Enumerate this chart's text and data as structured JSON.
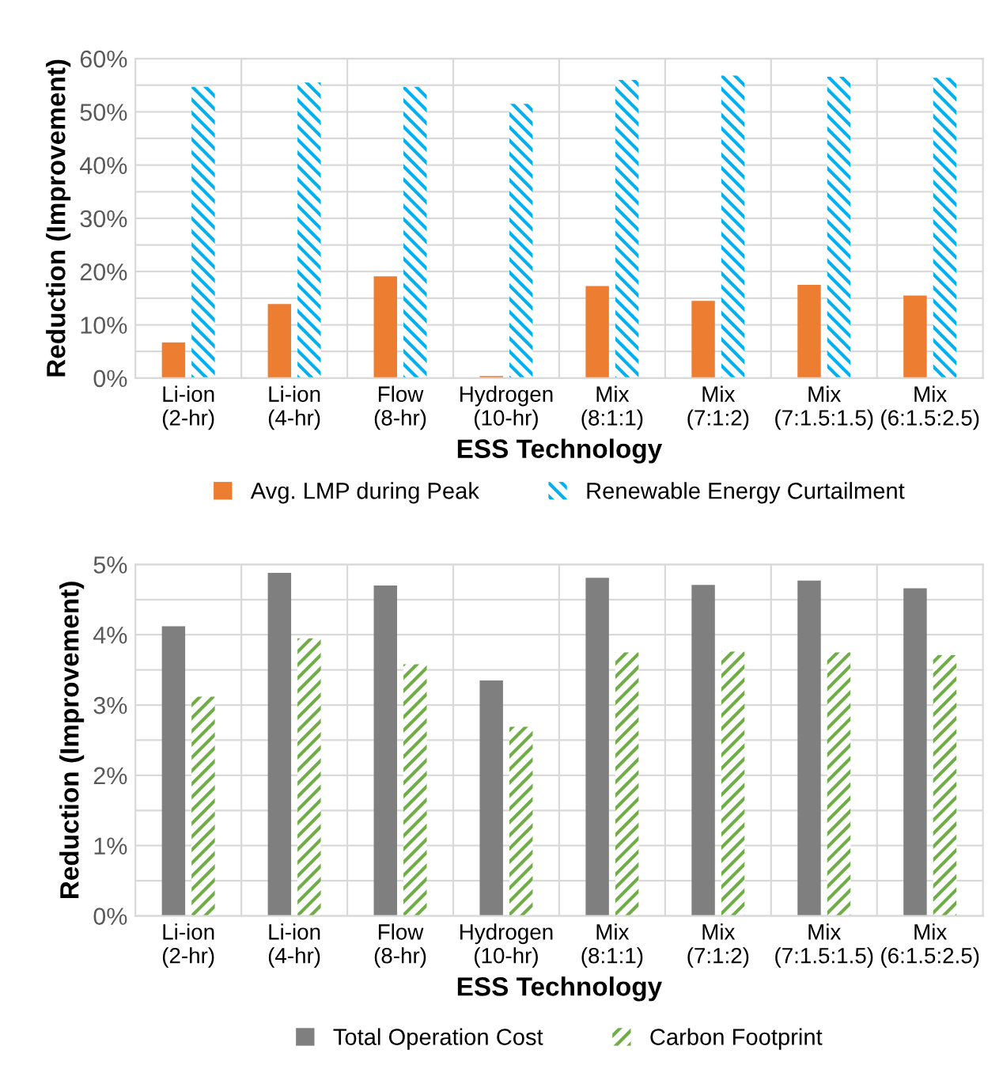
{
  "chart_data": [
    {
      "type": "bar",
      "xlabel": "ESS Technology",
      "ylabel": "Reduction (Improvement)",
      "categories": [
        "Li-ion\n(2-hr)",
        "Li-ion\n(4-hr)",
        "Flow\n(8-hr)",
        "Hydrogen\n(10-hr)",
        "Mix\n(8:1:1)",
        "Mix\n(7:1:2)",
        "Mix\n(7:1.5:1.5)",
        "Mix\n(6:1.5:2.5)"
      ],
      "series": [
        {
          "name": "Avg. LMP during Peak",
          "color": "#ed7d31",
          "values": [
            6.7,
            13.9,
            19.1,
            0.4,
            17.3,
            14.5,
            17.5,
            15.5
          ]
        },
        {
          "name": "Renewable Energy Curtailment",
          "color": "#00b0f0",
          "values": [
            54.7,
            55.5,
            54.7,
            51.5,
            56.0,
            56.8,
            56.6,
            56.4
          ]
        }
      ],
      "ylim": [
        0,
        60
      ],
      "yticks": [
        {
          "value": 0,
          "label": "0%"
        },
        {
          "value": 5,
          "label": null
        },
        {
          "value": 10,
          "label": "10%"
        },
        {
          "value": 15,
          "label": null
        },
        {
          "value": 20,
          "label": "20%"
        },
        {
          "value": 25,
          "label": null
        },
        {
          "value": 30,
          "label": "30%"
        },
        {
          "value": 35,
          "label": null
        },
        {
          "value": 40,
          "label": "40%"
        },
        {
          "value": 45,
          "label": null
        },
        {
          "value": 50,
          "label": "50%"
        },
        {
          "value": 55,
          "label": null
        },
        {
          "value": 60,
          "label": "60%"
        }
      ],
      "grid": true,
      "legend": "bottom"
    },
    {
      "type": "bar",
      "xlabel": "ESS Technology",
      "ylabel": "Reduction (Improvement)",
      "categories": [
        "Li-ion\n(2-hr)",
        "Li-ion\n(4-hr)",
        "Flow\n(8-hr)",
        "Hydrogen\n(10-hr)",
        "Mix\n(8:1:1)",
        "Mix\n(7:1:2)",
        "Mix\n(7:1.5:1.5)",
        "Mix\n(6:1.5:2.5)"
      ],
      "series": [
        {
          "name": "Total Operation Cost",
          "color": "#7f7f7f",
          "values": [
            4.12,
            4.88,
            4.7,
            3.35,
            4.81,
            4.71,
            4.77,
            4.66
          ]
        },
        {
          "name": "Carbon Footprint",
          "color": "#70ad47",
          "values": [
            3.12,
            3.95,
            3.58,
            2.69,
            3.75,
            3.76,
            3.75,
            3.71
          ]
        }
      ],
      "ylim": [
        0,
        5
      ],
      "yticks": [
        {
          "value": 0,
          "label": "0%"
        },
        {
          "value": 0.5,
          "label": null
        },
        {
          "value": 1,
          "label": "1%"
        },
        {
          "value": 1.5,
          "label": null
        },
        {
          "value": 2,
          "label": "2%"
        },
        {
          "value": 2.5,
          "label": null
        },
        {
          "value": 3,
          "label": "3%"
        },
        {
          "value": 3.5,
          "label": null
        },
        {
          "value": 4,
          "label": "4%"
        },
        {
          "value": 4.5,
          "label": null
        },
        {
          "value": 5,
          "label": "5%"
        }
      ],
      "grid": true,
      "legend": "bottom"
    }
  ]
}
